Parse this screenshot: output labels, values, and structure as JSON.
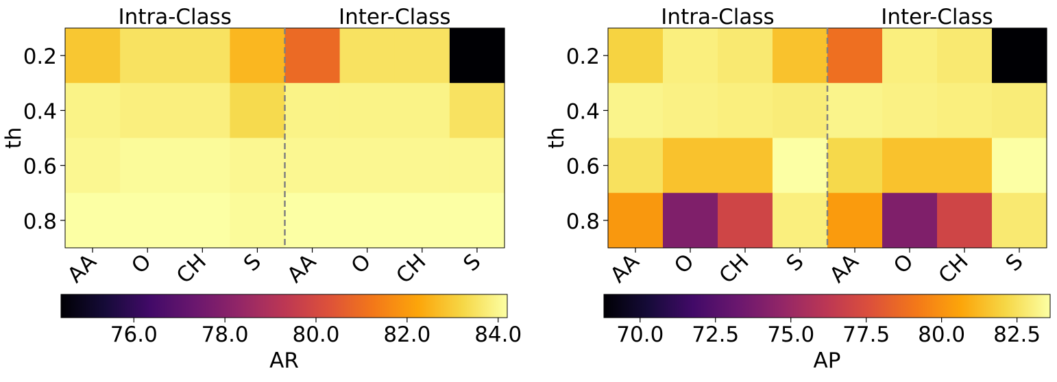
{
  "chart_data": [
    {
      "type": "heatmap",
      "group_labels": [
        "Intra-Class",
        "Inter-Class"
      ],
      "ylabel": "th",
      "y_categories": [
        "0.2",
        "0.4",
        "0.6",
        "0.8"
      ],
      "x_categories": [
        "AA",
        "O",
        "CH",
        "S",
        "AA",
        "O",
        "CH",
        "S"
      ],
      "colormap": "inferno",
      "colorbar": {
        "label": "AR",
        "vmin": 74.4,
        "vmax": 84.2,
        "ticks": [
          76.0,
          78.0,
          80.0,
          82.0,
          84.0
        ],
        "tick_labels": [
          "76.0",
          "78.0",
          "80.0",
          "82.0",
          "84.0"
        ]
      },
      "group_divider_after_column": 4,
      "values": [
        [
          82.9,
          83.5,
          83.5,
          82.6,
          80.9,
          83.5,
          83.5,
          74.4
        ],
        [
          83.9,
          83.8,
          83.8,
          83.3,
          83.9,
          83.9,
          83.9,
          83.5
        ],
        [
          84.0,
          84.1,
          84.1,
          84.0,
          84.0,
          84.0,
          84.0,
          84.0
        ],
        [
          84.2,
          84.2,
          84.2,
          84.1,
          84.2,
          84.2,
          84.2,
          84.2
        ]
      ]
    },
    {
      "type": "heatmap",
      "group_labels": [
        "Intra-Class",
        "Inter-Class"
      ],
      "ylabel": "th",
      "y_categories": [
        "0.2",
        "0.4",
        "0.6",
        "0.8"
      ],
      "x_categories": [
        "AA",
        "O",
        "CH",
        "S",
        "AA",
        "O",
        "CH",
        "S"
      ],
      "colormap": "inferno",
      "colorbar": {
        "label": "AP",
        "vmin": 68.8,
        "vmax": 83.6,
        "ticks": [
          70.0,
          72.5,
          75.0,
          77.5,
          80.0,
          82.5
        ],
        "tick_labels": [
          "70.0",
          "72.5",
          "75.0",
          "77.5",
          "80.0",
          "82.5"
        ]
      },
      "group_divider_after_column": 4,
      "values": [
        [
          82.0,
          83.0,
          82.8,
          81.5,
          78.8,
          83.0,
          82.8,
          68.8
        ],
        [
          83.2,
          83.1,
          83.0,
          82.9,
          83.2,
          83.1,
          83.0,
          82.9
        ],
        [
          82.5,
          81.5,
          81.5,
          83.6,
          82.2,
          81.5,
          81.5,
          83.6
        ],
        [
          80.2,
          74.0,
          77.0,
          83.0,
          80.3,
          74.0,
          77.0,
          82.8
        ]
      ]
    }
  ]
}
